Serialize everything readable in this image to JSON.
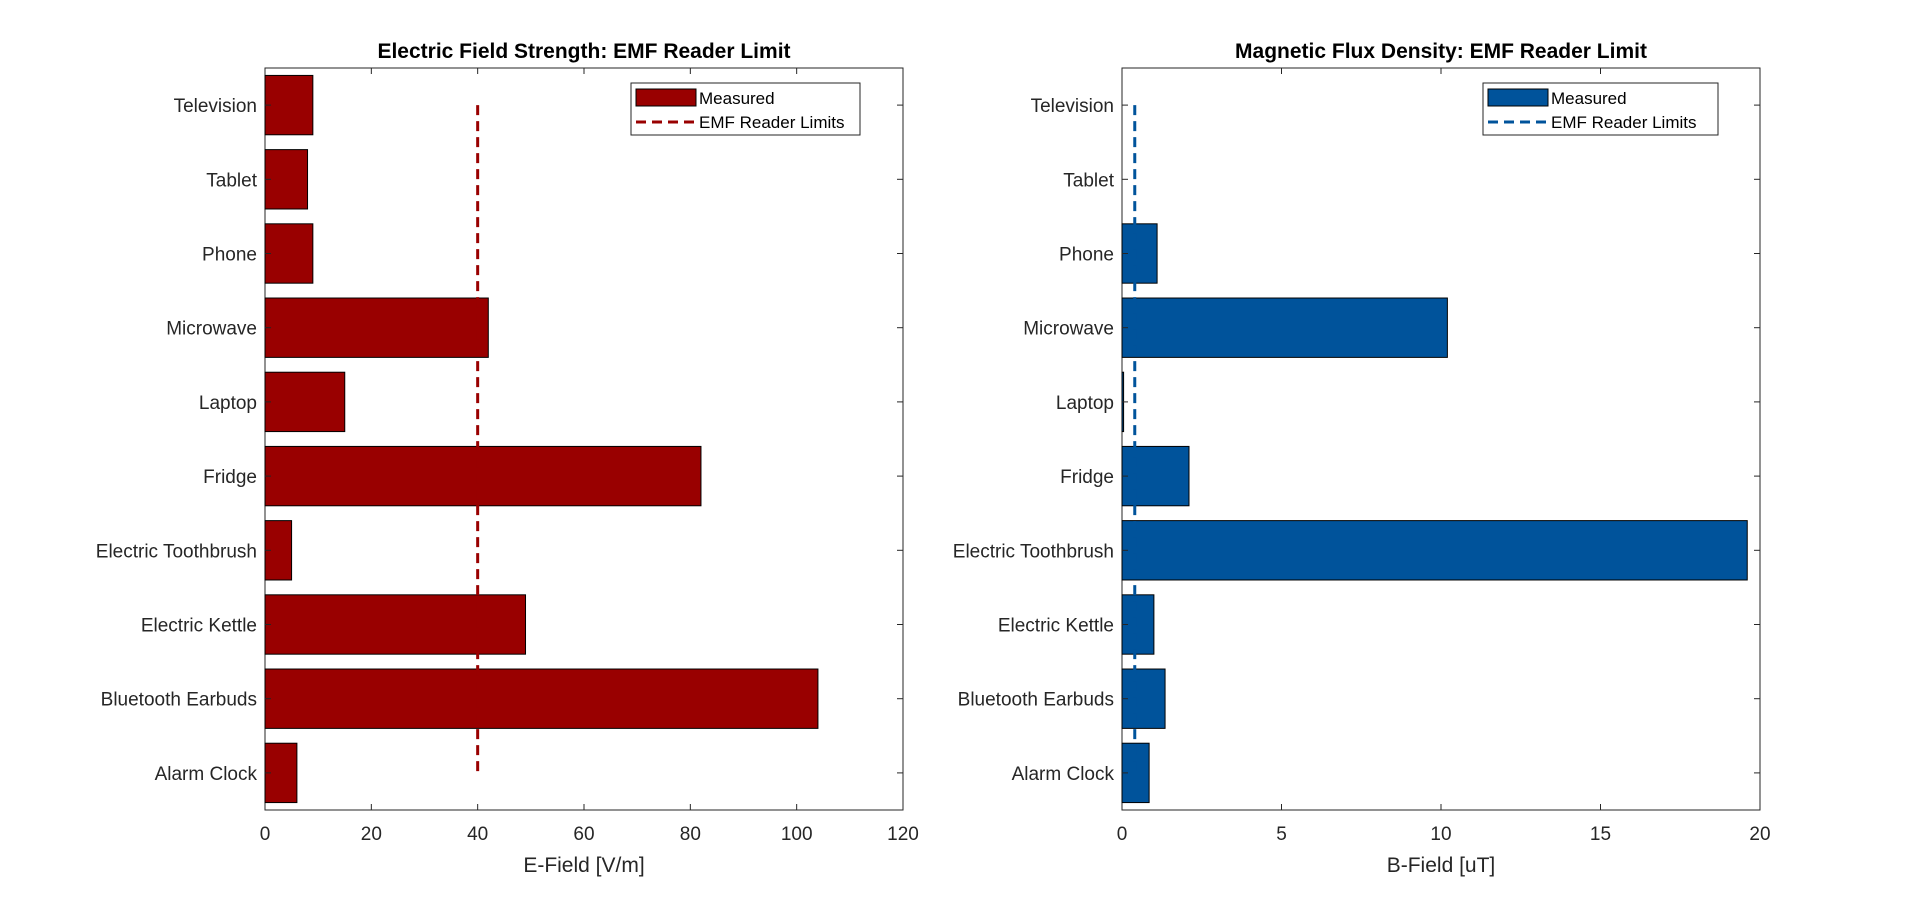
{
  "chart_data": [
    {
      "type": "bar",
      "orientation": "horizontal",
      "title": "Electric Field Strength: EMF Reader Limit",
      "xlabel": "E-Field [V/m]",
      "ylabel": "",
      "categories": [
        "Alarm Clock",
        "Bluetooth Earbuds",
        "Electric Kettle",
        "Electric Toothbrush",
        "Fridge",
        "Laptop",
        "Microwave",
        "Phone",
        "Tablet",
        "Television"
      ],
      "series": [
        {
          "name": "Measured",
          "values": [
            6,
            104,
            49,
            5,
            82,
            15,
            42,
            9,
            8,
            9
          ]
        }
      ],
      "reference_lines": [
        {
          "name": "EMF Reader Limits",
          "value": 40,
          "style": "dashed"
        }
      ],
      "xlim": [
        0,
        120
      ],
      "xticks": [
        0,
        20,
        40,
        60,
        80,
        100,
        120
      ],
      "xtick_labels": [
        "0",
        "20",
        "40",
        "60",
        "80",
        "100",
        "120"
      ],
      "legend_labels": [
        "Measured",
        "EMF Reader Limits"
      ],
      "legend_position": "top-right",
      "grid": false,
      "bar_color": "#990000",
      "line_color": "#990000"
    },
    {
      "type": "bar",
      "orientation": "horizontal",
      "title": "Magnetic Flux Density: EMF Reader Limit",
      "xlabel": "B-Field [uT]",
      "ylabel": "",
      "categories": [
        "Alarm Clock",
        "Bluetooth Earbuds",
        "Electric Kettle",
        "Electric Toothbrush",
        "Fridge",
        "Laptop",
        "Microwave",
        "Phone",
        "Tablet",
        "Television"
      ],
      "series": [
        {
          "name": "Measured",
          "values": [
            0.85,
            1.35,
            1.0,
            19.6,
            2.1,
            0.05,
            10.2,
            1.1,
            0,
            0
          ]
        }
      ],
      "reference_lines": [
        {
          "name": "EMF Reader Limits",
          "value": 0.4,
          "style": "dashed"
        }
      ],
      "xlim": [
        0,
        20
      ],
      "xticks": [
        0,
        5,
        10,
        15,
        20
      ],
      "xtick_labels": [
        "0",
        "5",
        "10",
        "15",
        "20"
      ],
      "legend_labels": [
        "Measured",
        "EMF Reader Limits"
      ],
      "legend_position": "top-right",
      "grid": false,
      "bar_color": "#00539b",
      "line_color": "#00539b"
    }
  ]
}
